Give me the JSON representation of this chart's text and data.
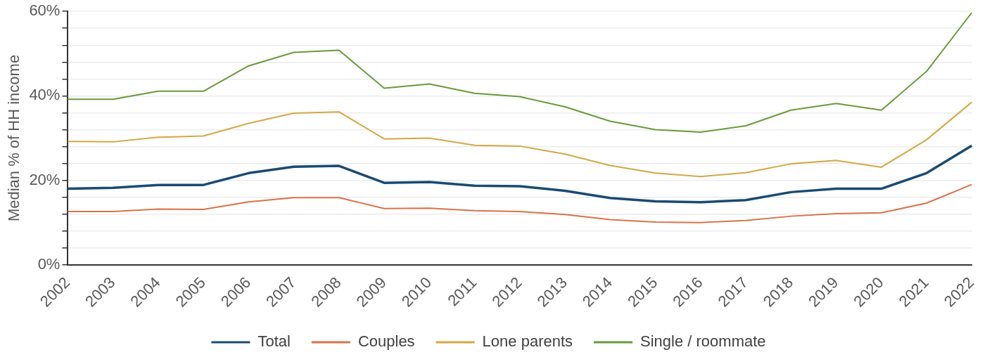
{
  "chart_data": {
    "type": "line",
    "ylabel": "Median % of HH income",
    "categories": [
      "2002",
      "2003",
      "2004",
      "2005",
      "2006",
      "2007",
      "2008",
      "2009",
      "2010",
      "2011",
      "2012",
      "2013",
      "2014",
      "2015",
      "2016",
      "2017",
      "2018",
      "2019",
      "2020",
      "2021",
      "2022"
    ],
    "series": [
      {
        "name": "Total",
        "color": "#1a4b72",
        "values": [
          18.0,
          18.2,
          18.9,
          18.9,
          21.7,
          23.2,
          23.4,
          19.4,
          19.6,
          18.7,
          18.6,
          17.5,
          15.8,
          15.0,
          14.8,
          15.3,
          17.2,
          18.0,
          18.0,
          21.7,
          28.2
        ]
      },
      {
        "name": "Couples",
        "color": "#d9734a",
        "values": [
          12.6,
          12.6,
          13.2,
          13.1,
          14.9,
          15.9,
          15.9,
          13.3,
          13.4,
          12.8,
          12.6,
          11.9,
          10.7,
          10.1,
          10.0,
          10.5,
          11.5,
          12.1,
          12.3,
          14.6,
          19.0
        ]
      },
      {
        "name": "Lone parents",
        "color": "#d4a843",
        "values": [
          29.2,
          29.1,
          30.2,
          30.5,
          33.5,
          35.9,
          36.2,
          29.8,
          30.0,
          28.3,
          28.1,
          26.2,
          23.5,
          21.7,
          20.9,
          21.8,
          23.9,
          24.7,
          23.1,
          29.6,
          38.5
        ]
      },
      {
        "name": "Single / roommate",
        "color": "#6a9a3a",
        "values": [
          39.2,
          39.2,
          41.1,
          41.1,
          47.1,
          50.3,
          50.8,
          41.8,
          42.8,
          40.6,
          39.8,
          37.4,
          34.0,
          32.0,
          31.4,
          32.9,
          36.6,
          38.2,
          36.6,
          45.8,
          59.7
        ]
      }
    ],
    "ylim": [
      0,
      60
    ],
    "yticks": [
      {
        "value": 0,
        "label": "0%"
      },
      {
        "value": 4,
        "label": null
      },
      {
        "value": 8,
        "label": null
      },
      {
        "value": 12,
        "label": null
      },
      {
        "value": 16,
        "label": null
      },
      {
        "value": 20,
        "label": "20%"
      },
      {
        "value": 24,
        "label": null
      },
      {
        "value": 28,
        "label": null
      },
      {
        "value": 32,
        "label": null
      },
      {
        "value": 36,
        "label": null
      },
      {
        "value": 40,
        "label": "40%"
      },
      {
        "value": 44,
        "label": null
      },
      {
        "value": 48,
        "label": null
      },
      {
        "value": 52,
        "label": null
      },
      {
        "value": 56,
        "label": null
      },
      {
        "value": 60,
        "label": "60%"
      }
    ],
    "grid": "y",
    "legend": "bottom",
    "marker": "none",
    "line_style": "solid"
  }
}
